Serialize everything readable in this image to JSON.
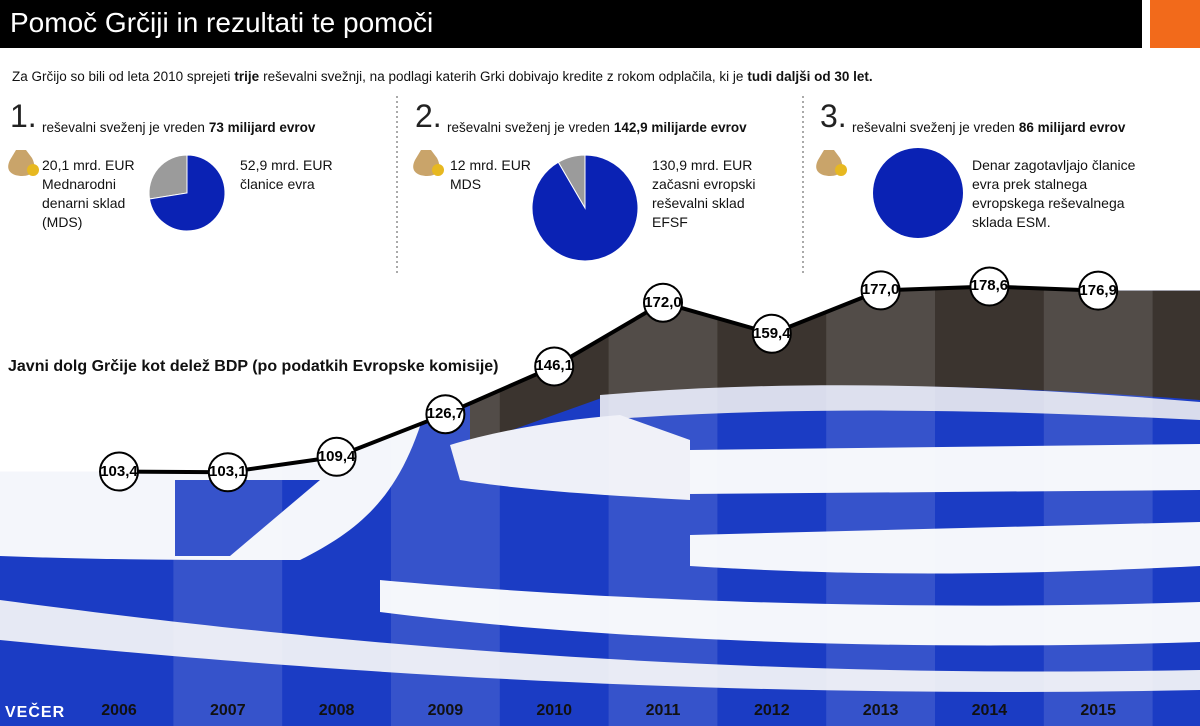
{
  "header": {
    "title": "Pomoč Grčiji in rezultati te pomoči"
  },
  "intro": [
    "Za Grčijo so bili od leta 2010 sprejeti",
    "trije",
    "reševalni svežnji, na podlagi katerih Grki dobivajo kredite z rokom odplačila, ki je",
    "tudi daljši od 30 let."
  ],
  "chart_data": [
    {
      "type": "pie",
      "number": "1.",
      "title": "reševalni sveženj je vreden",
      "title_bold": "73 milijard evrov",
      "values": [
        20.1,
        52.9
      ],
      "value_labels": [
        "20,1 mrd. EUR",
        "52,9 mrd. EUR"
      ],
      "labels": [
        "Mednarodni denarni sklad (MDS)",
        "članice evra"
      ],
      "colors": [
        "#9b9b9b",
        "#0a22b4"
      ]
    },
    {
      "type": "pie",
      "number": "2.",
      "title": "reševalni sveženj je vreden",
      "title_bold": "142,9 milijarde evrov",
      "values": [
        12,
        130.9
      ],
      "value_labels": [
        "12 mrd. EUR",
        "130,9 mrd. EUR"
      ],
      "labels": [
        "MDS",
        "začasni evropski reševalni sklad EFSF"
      ],
      "colors": [
        "#9b9b9b",
        "#0a22b4"
      ]
    },
    {
      "type": "pie",
      "number": "3.",
      "title": "reševalni sveženj je vreden",
      "title_bold": "86 milijard evrov",
      "values": [
        86
      ],
      "labels": [
        "Denar zagotavljajo članice evra prek stalnega evropskega reševalnega sklada ESM."
      ],
      "colors": [
        "#0a22b4"
      ]
    },
    {
      "type": "line",
      "title": "Javni dolg Grčije kot delež BDP (po podatkih Evropske komisije)",
      "categories": [
        "2006",
        "2007",
        "2008",
        "2009",
        "2010",
        "2011",
        "2012",
        "2013",
        "2014",
        "2015"
      ],
      "values": [
        103.4,
        103.1,
        109.4,
        126.7,
        146.1,
        172.0,
        159.4,
        177.0,
        178.6,
        176.9
      ],
      "value_labels": [
        "103,4",
        "103,1",
        "109,4",
        "126,7",
        "146,1",
        "172,0",
        "159,4",
        "177,0",
        "178,6",
        "176,9"
      ],
      "ylim": [
        0,
        295
      ],
      "color": "#000000"
    }
  ],
  "footer": {
    "logo": "VEČER"
  }
}
